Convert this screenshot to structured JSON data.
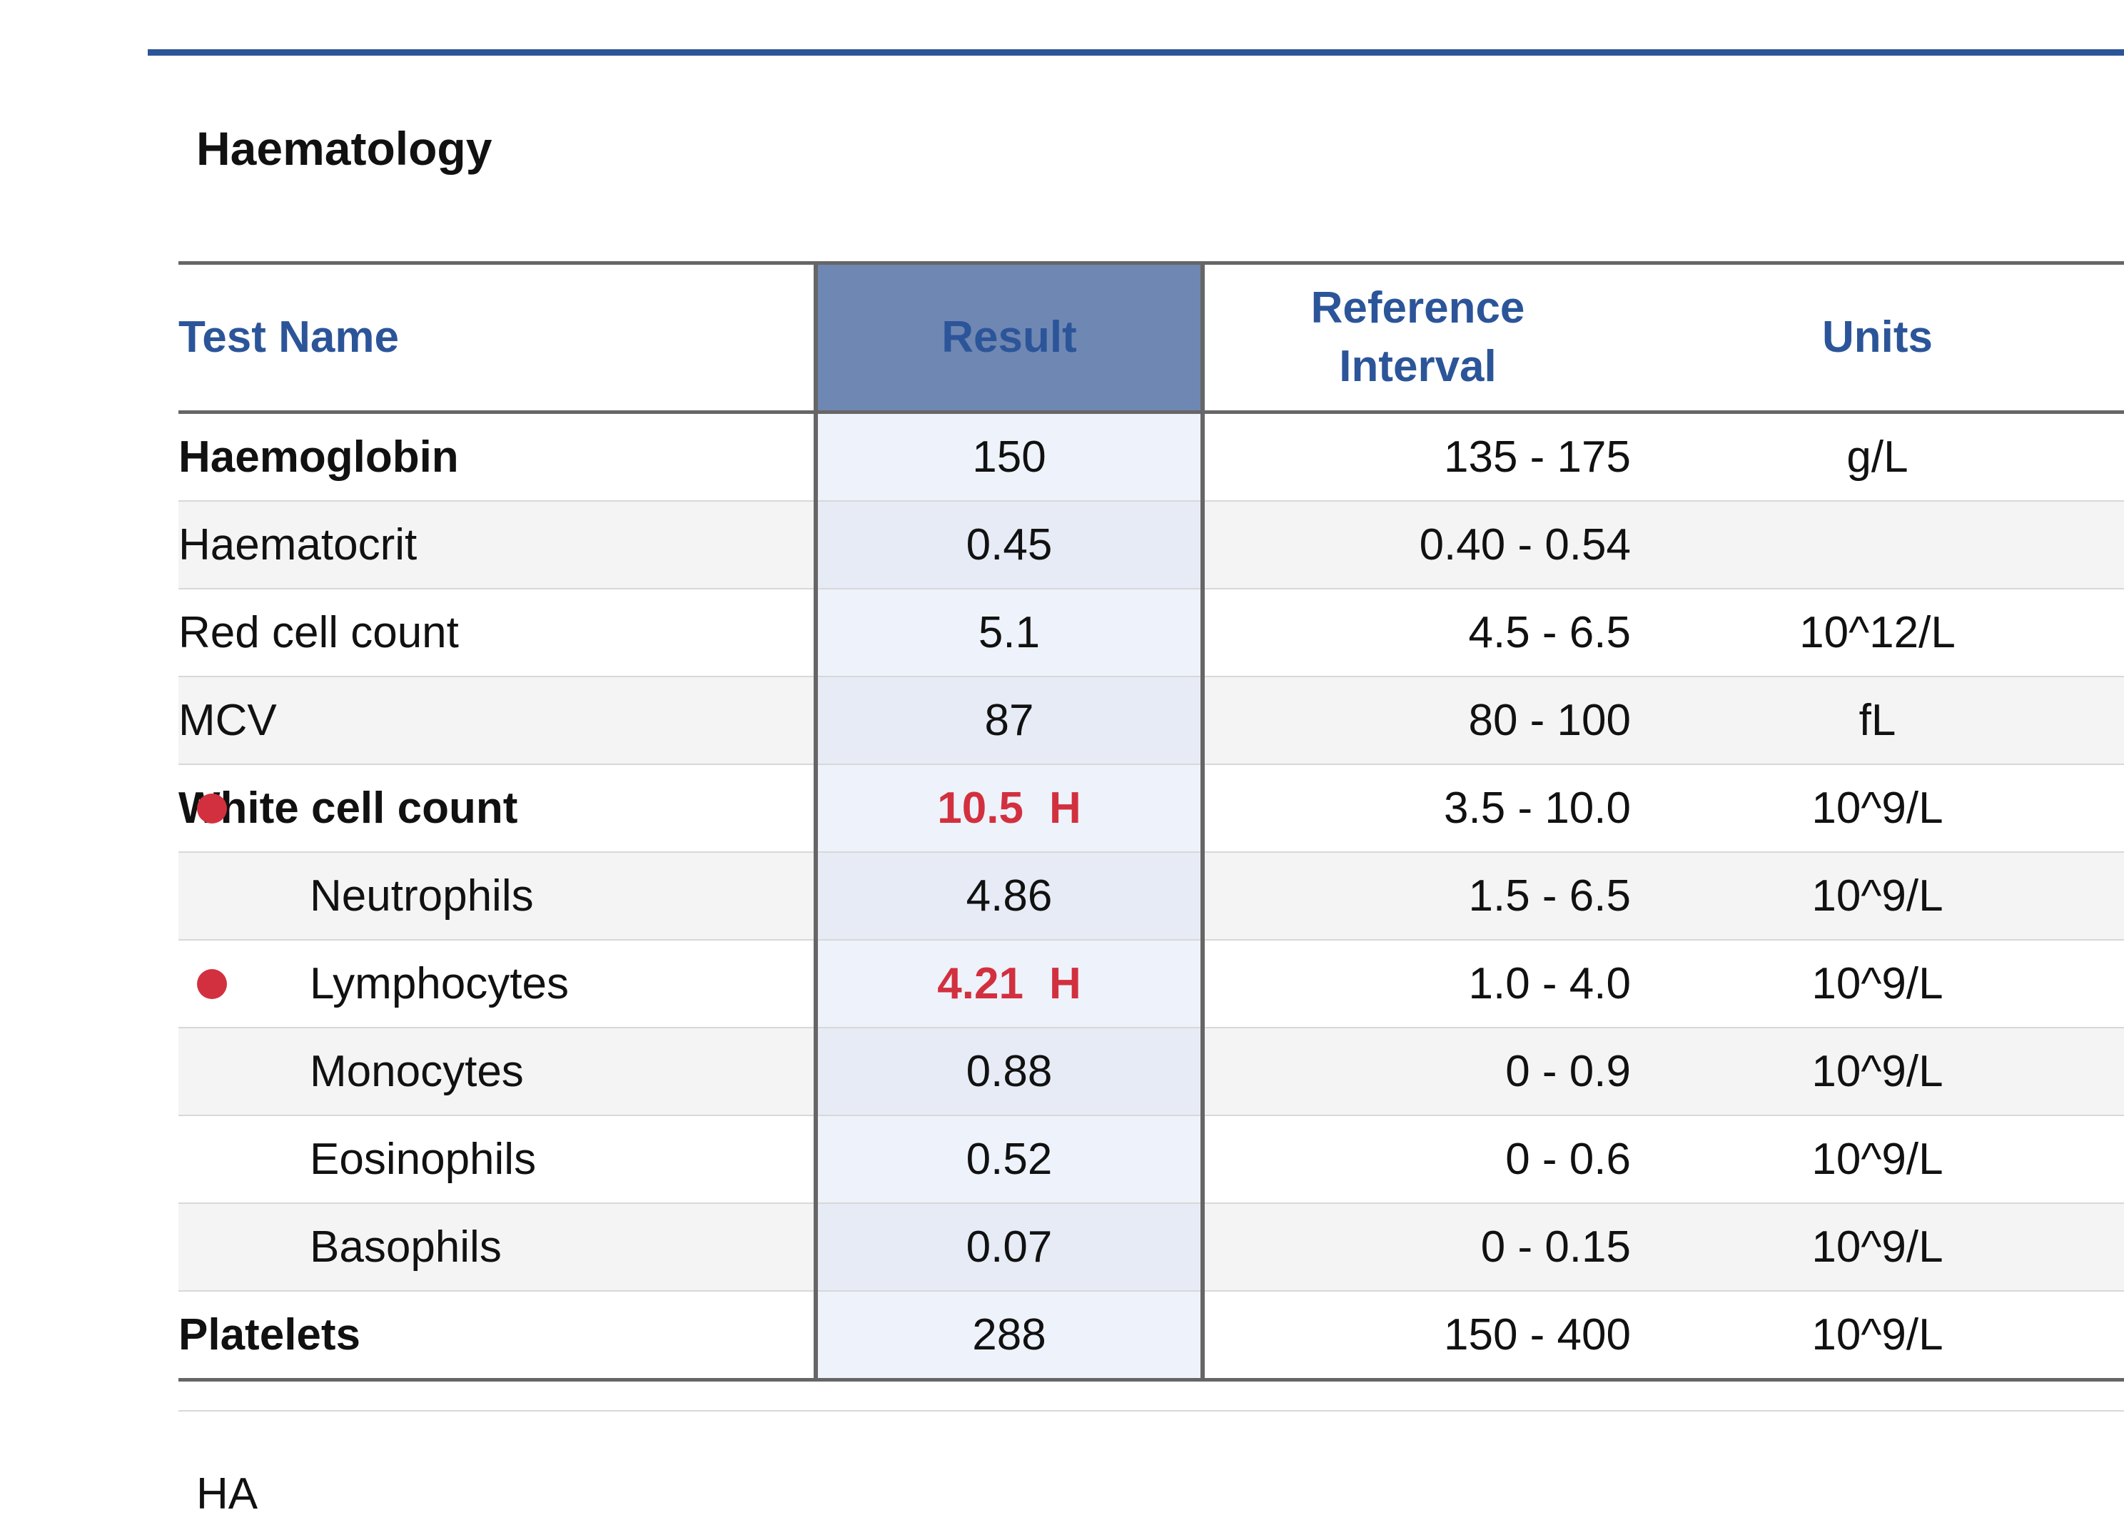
{
  "section": {
    "title": "Haematology"
  },
  "table": {
    "headers": {
      "test_name": "Test Name",
      "result": "Result",
      "reference_line1": "Reference",
      "reference_line2": "Interval",
      "units": "Units"
    },
    "rows": [
      {
        "name": "Haemoglobin",
        "result": "150",
        "flag": "",
        "reference": "135 - 175",
        "units": "g/L",
        "bold": true,
        "indent": false,
        "abnormal": false
      },
      {
        "name": "Haematocrit",
        "result": "0.45",
        "flag": "",
        "reference": "0.40 - 0.54",
        "units": "",
        "bold": false,
        "indent": false,
        "abnormal": false
      },
      {
        "name": "Red cell count",
        "result": "5.1",
        "flag": "",
        "reference": "4.5 - 6.5",
        "units": "10^12/L",
        "bold": false,
        "indent": false,
        "abnormal": false
      },
      {
        "name": "MCV",
        "result": "87",
        "flag": "",
        "reference": "80 - 100",
        "units": "fL",
        "bold": false,
        "indent": false,
        "abnormal": false
      },
      {
        "name": "White cell count",
        "result": "10.5",
        "flag": "H",
        "reference": "3.5 - 10.0",
        "units": "10^9/L",
        "bold": true,
        "indent": false,
        "abnormal": true
      },
      {
        "name": "Neutrophils",
        "result": "4.86",
        "flag": "",
        "reference": "1.5 - 6.5",
        "units": "10^9/L",
        "bold": false,
        "indent": true,
        "abnormal": false
      },
      {
        "name": "Lymphocytes",
        "result": "4.21",
        "flag": "H",
        "reference": "1.0 - 4.0",
        "units": "10^9/L",
        "bold": false,
        "indent": true,
        "abnormal": true
      },
      {
        "name": "Monocytes",
        "result": "0.88",
        "flag": "",
        "reference": "0 - 0.9",
        "units": "10^9/L",
        "bold": false,
        "indent": true,
        "abnormal": false
      },
      {
        "name": "Eosinophils",
        "result": "0.52",
        "flag": "",
        "reference": "0 - 0.6",
        "units": "10^9/L",
        "bold": false,
        "indent": true,
        "abnormal": false
      },
      {
        "name": "Basophils",
        "result": "0.07",
        "flag": "",
        "reference": "0 - 0.15",
        "units": "10^9/L",
        "bold": false,
        "indent": true,
        "abnormal": false
      },
      {
        "name": "Platelets",
        "result": "288",
        "flag": "",
        "reference": "150 - 400",
        "units": "10^9/L",
        "bold": true,
        "indent": false,
        "abnormal": false
      }
    ]
  },
  "footer": {
    "code": "HA"
  },
  "colors": {
    "accent": "#2c5599",
    "result_header_bg": "#6f87b3",
    "abnormal": "#d2303f"
  }
}
